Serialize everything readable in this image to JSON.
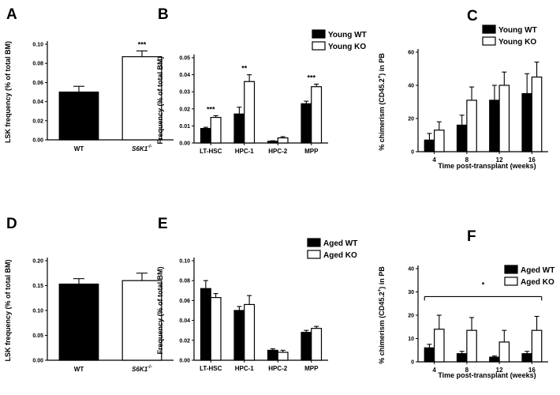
{
  "figure": {
    "legend_labels": {
      "young_wt": "Young WT",
      "young_ko": "Young KO",
      "aged_wt": "Aged WT",
      "aged_ko": "Aged KO"
    }
  },
  "chart_data": [
    {
      "panel": "A",
      "type": "bar",
      "title": "",
      "ylabel": "LSK frequency (% of total BM)",
      "xlabel": "",
      "ylim": [
        0,
        0.1
      ],
      "yticks": [
        "0.00",
        "0.02",
        "0.04",
        "0.06",
        "0.08",
        "0.10"
      ],
      "categories": [
        "WT",
        "S6K1-/-"
      ],
      "category_base": [
        "WT",
        "S6K1"
      ],
      "category_sup": [
        "",
        "-/-"
      ],
      "series": [
        {
          "name": "WT",
          "color": "#000000",
          "values": [
            0.05,
            null
          ],
          "errors": [
            0.006,
            null
          ]
        },
        {
          "name": "S6K1-/-",
          "color": "#ffffff",
          "values": [
            null,
            0.087
          ],
          "errors": [
            null,
            0.006
          ]
        }
      ],
      "annotations": [
        {
          "text": "***",
          "category": 1
        }
      ]
    },
    {
      "panel": "B",
      "type": "bar",
      "title": "",
      "ylabel": "Frequency (% of total BM)",
      "xlabel": "",
      "ylim": [
        0,
        0.05
      ],
      "yticks": [
        "0.00",
        "0.01",
        "0.02",
        "0.03",
        "0.04",
        "0.05"
      ],
      "categories": [
        "LT-HSC",
        "HPC-1",
        "HPC-2",
        "MPP"
      ],
      "series": [
        {
          "name": "Young WT",
          "color": "#000000",
          "values": [
            0.0085,
            0.017,
            0.001,
            0.023
          ],
          "errors": [
            0.0007,
            0.004,
            0.0003,
            0.0015
          ]
        },
        {
          "name": "Young KO",
          "color": "#ffffff",
          "values": [
            0.015,
            0.036,
            0.003,
            0.033
          ],
          "errors": [
            0.001,
            0.004,
            0.0007,
            0.0015
          ]
        }
      ],
      "legend": [
        "Young WT",
        "Young KO"
      ],
      "annotations": [
        {
          "text": "***",
          "category": 0
        },
        {
          "text": "**",
          "category": 1
        },
        {
          "text": "***",
          "category": 3
        }
      ]
    },
    {
      "panel": "C",
      "type": "bar",
      "title": "",
      "ylabel": "% chimerism (CD45.2+) in PB",
      "xlabel": "Time post-transplant (weeks)",
      "ylim": [
        0,
        60
      ],
      "yticks": [
        "0",
        "20",
        "40",
        "60"
      ],
      "categories": [
        "4",
        "8",
        "12",
        "16"
      ],
      "series": [
        {
          "name": "Young WT",
          "color": "#000000",
          "values": [
            7,
            16,
            31,
            35
          ],
          "errors": [
            4,
            6,
            9,
            12
          ]
        },
        {
          "name": "Young KO",
          "color": "#ffffff",
          "values": [
            13,
            31,
            40,
            45
          ],
          "errors": [
            5,
            8,
            8,
            9
          ]
        }
      ],
      "legend": [
        "Young WT",
        "Young KO"
      ],
      "annotations": []
    },
    {
      "panel": "D",
      "type": "bar",
      "title": "",
      "ylabel": "LSK frequency (% of total BM)",
      "xlabel": "",
      "ylim": [
        0,
        0.2
      ],
      "yticks": [
        "0.00",
        "0.05",
        "0.10",
        "0.15",
        "0.20"
      ],
      "categories": [
        "WT",
        "S6K1-/-"
      ],
      "category_base": [
        "WT",
        "S6K1"
      ],
      "category_sup": [
        "",
        "-/-"
      ],
      "series": [
        {
          "name": "WT",
          "color": "#000000",
          "values": [
            0.153,
            null
          ],
          "errors": [
            0.011,
            null
          ]
        },
        {
          "name": "S6K1-/-",
          "color": "#ffffff",
          "values": [
            null,
            0.16
          ],
          "errors": [
            null,
            0.015
          ]
        }
      ],
      "annotations": []
    },
    {
      "panel": "E",
      "type": "bar",
      "title": "",
      "ylabel": "Frequency (% of total BM)",
      "xlabel": "",
      "ylim": [
        0,
        0.1
      ],
      "yticks": [
        "0.00",
        "0.02",
        "0.04",
        "0.06",
        "0.08",
        "0.10"
      ],
      "categories": [
        "LT-HSC",
        "HPC-1",
        "HPC-2",
        "MPP"
      ],
      "series": [
        {
          "name": "Aged WT",
          "color": "#000000",
          "values": [
            0.072,
            0.05,
            0.01,
            0.028
          ],
          "errors": [
            0.008,
            0.004,
            0.0015,
            0.002
          ]
        },
        {
          "name": "Aged KO",
          "color": "#ffffff",
          "values": [
            0.063,
            0.056,
            0.008,
            0.032
          ],
          "errors": [
            0.004,
            0.009,
            0.002,
            0.002
          ]
        }
      ],
      "legend": [
        "Aged WT",
        "Aged KO"
      ],
      "annotations": []
    },
    {
      "panel": "F",
      "type": "bar",
      "title": "",
      "ylabel": "% chimerism (CD45.2+) in PB",
      "xlabel": "Time post-transplant (weeks)",
      "ylim": [
        0,
        40
      ],
      "yticks": [
        "0",
        "10",
        "20",
        "30",
        "40"
      ],
      "categories": [
        "4",
        "8",
        "12",
        "16"
      ],
      "series": [
        {
          "name": "Aged WT",
          "color": "#000000",
          "values": [
            6,
            3.5,
            2,
            3.5
          ],
          "errors": [
            1.5,
            1,
            0.5,
            1
          ]
        },
        {
          "name": "Aged KO",
          "color": "#ffffff",
          "values": [
            14,
            13.5,
            8.5,
            13.5
          ],
          "errors": [
            6,
            5.5,
            5,
            6
          ]
        }
      ],
      "legend": [
        "Aged WT",
        "Aged KO"
      ],
      "annotations": [
        {
          "text": "*",
          "bracket_from": 0,
          "bracket_to": 3
        }
      ]
    }
  ]
}
